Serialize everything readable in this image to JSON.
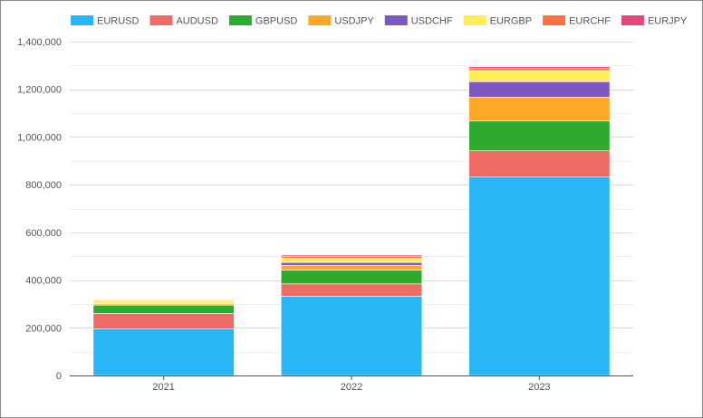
{
  "chart_data": {
    "type": "bar",
    "stacked": true,
    "categories": [
      "2021",
      "2022",
      "2023"
    ],
    "series": [
      {
        "name": "EURUSD",
        "color": "#29b6f6",
        "values": [
          195000,
          332000,
          832000
        ]
      },
      {
        "name": "AUDUSD",
        "color": "#ef6c66",
        "values": [
          65000,
          52000,
          110000
        ]
      },
      {
        "name": "GBPUSD",
        "color": "#2eaa2e",
        "values": [
          35000,
          58000,
          125000
        ]
      },
      {
        "name": "USDJPY",
        "color": "#ffa726",
        "values": [
          5000,
          20000,
          100000
        ]
      },
      {
        "name": "USDCHF",
        "color": "#7e57c2",
        "values": [
          3000,
          12000,
          65000
        ]
      },
      {
        "name": "EURGBP",
        "color": "#ffee58",
        "values": [
          12000,
          18000,
          47000
        ]
      },
      {
        "name": "EURCHF",
        "color": "#ff7043",
        "values": [
          3000,
          8000,
          10000
        ]
      },
      {
        "name": "EURJPY",
        "color": "#e8457c",
        "values": [
          2000,
          5000,
          6000
        ]
      }
    ],
    "ylim": [
      0,
      1400000
    ],
    "yticks": [
      0,
      200000,
      400000,
      600000,
      800000,
      1000000,
      1200000,
      1400000
    ],
    "ytick_labels": [
      "0",
      "200,000",
      "400,000",
      "600,000",
      "800,000",
      "1,000,000",
      "1,200,000",
      "1,400,000"
    ],
    "grid": true,
    "legend_position": "top-left"
  }
}
